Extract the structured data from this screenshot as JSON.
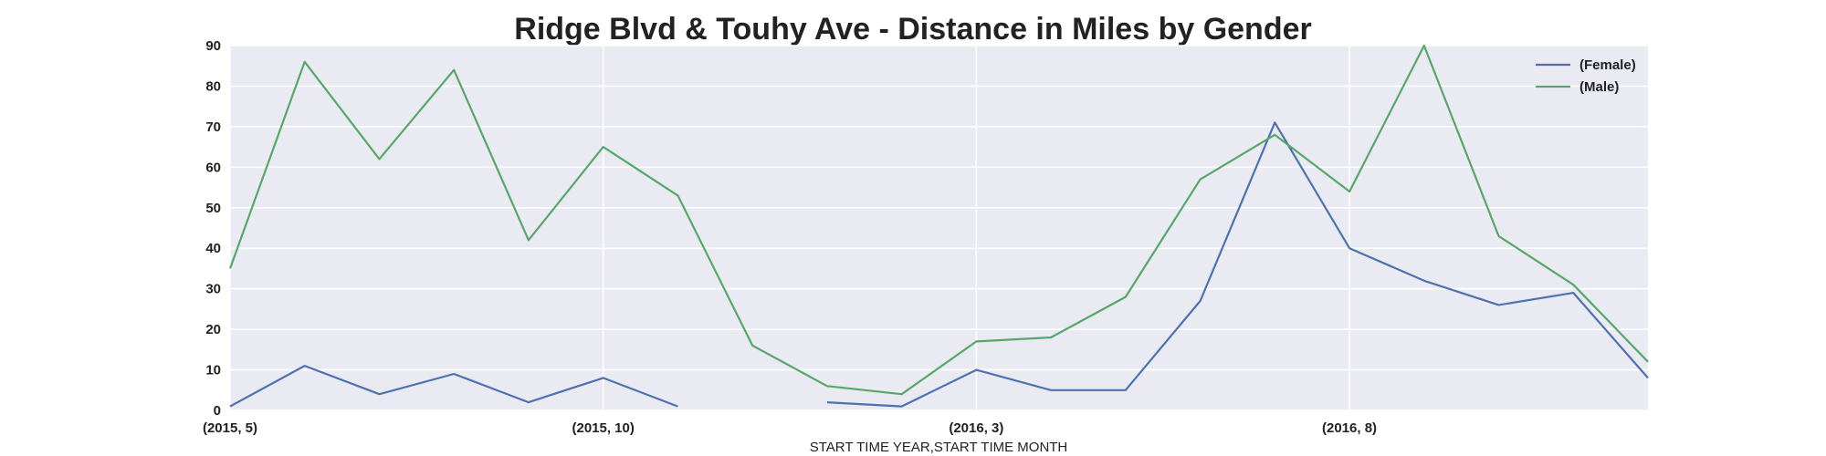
{
  "chart_data": {
    "type": "line",
    "title": "Ridge Blvd & Touhy Ave - Distance in Miles by Gender",
    "xlabel": "START TIME YEAR,START TIME MONTH",
    "ylabel": "",
    "x": [
      "(2015, 5)",
      "(2015, 6)",
      "(2015, 7)",
      "(2015, 8)",
      "(2015, 9)",
      "(2015, 10)",
      "(2015, 11)",
      "(2015, 12)",
      "(2016, 1)",
      "(2016, 2)",
      "(2016, 3)",
      "(2016, 4)",
      "(2016, 5)",
      "(2016, 6)",
      "(2016, 7)",
      "(2016, 8)",
      "(2016, 9)",
      "(2016, 10)",
      "(2016, 11)",
      "(2016, 12)"
    ],
    "xtick_labels": [
      "(2015, 5)",
      "(2015, 10)",
      "(2016, 3)",
      "(2016, 8)"
    ],
    "ylim": [
      0,
      90
    ],
    "yticks": [
      0,
      10,
      20,
      30,
      40,
      50,
      60,
      70,
      80,
      90
    ],
    "grid": true,
    "legend_position": "top-right",
    "series": [
      {
        "name": "(Female)",
        "color": "#4c72b0",
        "values": [
          1,
          11,
          4,
          9,
          2,
          8,
          1,
          null,
          2,
          1,
          10,
          5,
          5,
          27,
          71,
          40,
          32,
          26,
          29,
          8
        ]
      },
      {
        "name": "(Male)",
        "color": "#55a868",
        "values": [
          35,
          86,
          62,
          84,
          42,
          65,
          53,
          16,
          6,
          4,
          17,
          18,
          28,
          57,
          68,
          54,
          90,
          43,
          31,
          12
        ]
      }
    ]
  }
}
